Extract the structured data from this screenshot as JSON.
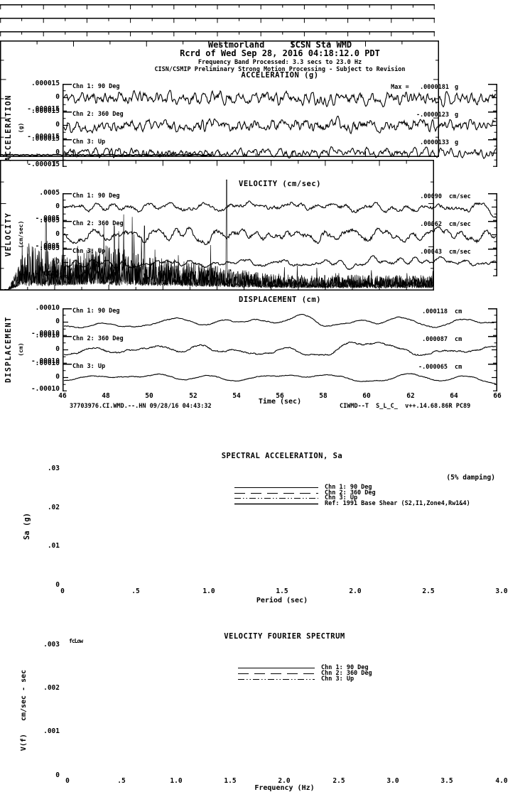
{
  "header": {
    "station_line": "Westmorland     SCSN Sta WMD",
    "record_line": "Rcrd of Wed Sep 28, 2016 04:18:12.0 PDT",
    "band_line": "Frequency Band Processed: 3.3 secs to 23.0 Hz",
    "processing_line": "CISN/CSMIP Preliminary Strong Motion Processing - Subject to Revision"
  },
  "timeseries": {
    "xlabel": "Time (sec)",
    "x_ticks": [
      "46",
      "48",
      "50",
      "52",
      "54",
      "56",
      "58",
      "60",
      "62",
      "64",
      "66"
    ],
    "footer_left": "37703976.CI.WMD.--.HN 09/28/16 04:43:32",
    "footer_right": "CIWMD--T  S_L_C_  v++.14.68.86R PC89",
    "panels": [
      {
        "title": "ACCELERATION (g)",
        "axis_name": "ACCELERATION",
        "axis_unit": "(g)",
        "y_top": ".000015",
        "y_zero": "0",
        "y_bottom": "-.000015",
        "channels": [
          {
            "label": "Chn 1: 90 Deg",
            "peak": "Max =   .0000181",
            "unit": "g"
          },
          {
            "label": "Chn 2: 360 Deg",
            "peak": "-.0000123",
            "unit": "g"
          },
          {
            "label": "Chn 3: Up",
            "peak": ".0000133",
            "unit": "g"
          }
        ]
      },
      {
        "title": "VELOCITY (cm/sec)",
        "axis_name": "VELOCITY",
        "axis_unit": "(cm/sec)",
        "y_top": ".0005",
        "y_zero": "0",
        "y_bottom": "-.0005",
        "channels": [
          {
            "label": "Chn 1: 90 Deg",
            "peak": ".00090",
            "unit": "cm/sec"
          },
          {
            "label": "Chn 2: 360 Deg",
            "peak": ".00062",
            "unit": "cm/sec"
          },
          {
            "label": "Chn 3: Up",
            "peak": ".00043",
            "unit": "cm/sec"
          }
        ]
      },
      {
        "title": "DISPLACEMENT (cm)",
        "axis_name": "DISPLACEMENT",
        "axis_unit": "(cm)",
        "y_top": ".00010",
        "y_zero": "0",
        "y_bottom": "-.00010",
        "channels": [
          {
            "label": "Chn 1: 90 Deg",
            "peak": ".000118",
            "unit": "cm"
          },
          {
            "label": "Chn 2: 360 Deg",
            "peak": ".000087",
            "unit": "cm"
          },
          {
            "label": "Chn 3: Up",
            "peak": "-.000065",
            "unit": "cm"
          }
        ]
      }
    ]
  },
  "sa": {
    "title": "SPECTRAL ACCELERATION, Sa",
    "damping_note": "(5% damping)",
    "ylabel": "Sa (g)",
    "xlabel": "Period (sec)",
    "y_ticks": [
      ".03",
      ".02",
      ".01",
      "0"
    ],
    "x_ticks": [
      "0",
      ".5",
      "1.0",
      "1.5",
      "2.0",
      "2.5",
      "3.0"
    ],
    "legend": [
      {
        "label": "Chn 1: 90 Deg"
      },
      {
        "label": "Chn 2: 360 Deg"
      },
      {
        "label": "Chn 3: Up"
      },
      {
        "label": "Ref: 1991 Base Shear (S2,I1,Zone4,Rw1&4)"
      }
    ]
  },
  "fourier": {
    "title": "VELOCITY FOURIER SPECTRUM",
    "corner_label": "fcLow",
    "ylabel": "V(f)   cm/sec - sec",
    "xlabel": "Frequency (Hz)",
    "y_ticks": [
      ".003",
      ".002",
      ".001",
      "0"
    ],
    "x_ticks": [
      "0",
      ".5",
      "1.0",
      "1.5",
      "2.0",
      "2.5",
      "3.0",
      "3.5",
      "4.0"
    ],
    "legend": [
      {
        "label": "Chn 1: 90 Deg"
      },
      {
        "label": "Chn 2: 360 Deg"
      },
      {
        "label": "Chn 3: Up"
      }
    ]
  },
  "chart_data": [
    {
      "type": "line",
      "title": "ACCELERATION (g)",
      "xlabel": "Time (sec)",
      "x_range": [
        46,
        66
      ],
      "ylim": [
        -1.5e-05,
        1.5e-05
      ],
      "series": [
        {
          "name": "Chn 1: 90 Deg",
          "peak_value_g": 1.81e-05
        },
        {
          "name": "Chn 2: 360 Deg",
          "peak_value_g": -1.23e-05
        },
        {
          "name": "Chn 3: Up",
          "peak_value_g": 1.33e-05
        }
      ],
      "note": "three stacked noise-like waveform traces, zero-mean, dense high-frequency oscillation"
    },
    {
      "type": "line",
      "title": "VELOCITY (cm/sec)",
      "xlabel": "Time (sec)",
      "x_range": [
        46,
        66
      ],
      "ylim": [
        -0.0005,
        0.0005
      ],
      "series": [
        {
          "name": "Chn 1: 90 Deg",
          "peak_value_cm_s": 0.0009
        },
        {
          "name": "Chn 2: 360 Deg",
          "peak_value_cm_s": 0.00062
        },
        {
          "name": "Chn 3: Up",
          "peak_value_cm_s": 0.00043
        }
      ],
      "note": "three stacked mid-frequency waveform traces, zero-mean"
    },
    {
      "type": "line",
      "title": "DISPLACEMENT (cm)",
      "xlabel": "Time (sec)",
      "x_range": [
        46,
        66
      ],
      "ylim": [
        -0.0001,
        0.0001
      ],
      "series": [
        {
          "name": "Chn 1: 90 Deg",
          "peak_value_cm": 0.000118
        },
        {
          "name": "Chn 2: 360 Deg",
          "peak_value_cm": 8.7e-05
        },
        {
          "name": "Chn 3: Up",
          "peak_value_cm": -6.5e-05
        }
      ],
      "note": "three stacked smooth low-frequency waveform traces"
    },
    {
      "type": "line",
      "title": "SPECTRAL ACCELERATION, Sa",
      "xlabel": "Period (sec)",
      "ylabel": "Sa (g)",
      "xlim": [
        0,
        3
      ],
      "ylim": [
        0,
        0.03
      ],
      "grid": false,
      "legend_position": "upper center",
      "annotation": "(5% damping)",
      "series": [
        {
          "name": "Chn 1: 90 Deg"
        },
        {
          "name": "Chn 2: 360 Deg"
        },
        {
          "name": "Chn 3: Up"
        },
        {
          "name": "Ref: 1991 Base Shear (S2,I1,Zone4,Rw1&4)"
        }
      ],
      "note": "all curves lie essentially at zero (Sa << .01 g), plotted from 0 to about 1.45 sec period"
    },
    {
      "type": "line",
      "title": "VELOCITY FOURIER SPECTRUM",
      "xlabel": "Frequency (Hz)",
      "ylabel": "V(f) cm/sec - sec",
      "xlim": [
        0,
        4
      ],
      "ylim": [
        0,
        0.003
      ],
      "legend_position": "upper center",
      "annotation": "fcLow marker at top-left corner",
      "series": [
        {
          "name": "Chn 1: 90 Deg"
        },
        {
          "name": "Chn 2: 360 Deg"
        },
        {
          "name": "Chn 3: Up"
        }
      ],
      "note": "dense spiky spectra overlapping; amplitude ramps up from 0 below ~0.2 Hz, bulk of energy 0.2-2.5 Hz around .0005-.0017, tallest spike ~.0026 near 2.1 Hz, decaying tail to 4 Hz"
    }
  ]
}
